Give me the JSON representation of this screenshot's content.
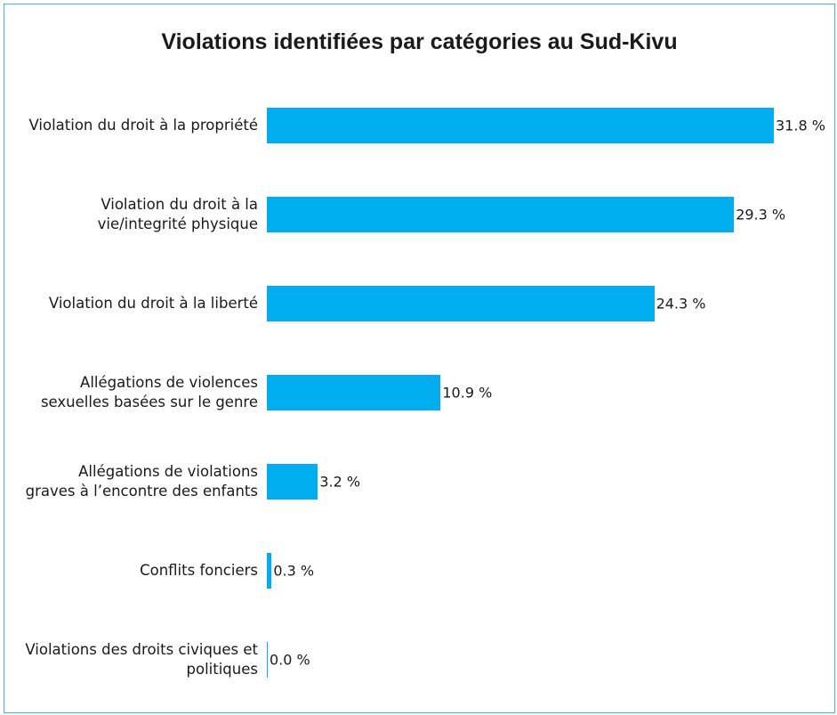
{
  "chart_data": {
    "type": "barh",
    "title": "Violations identifiées par catégories au Sud-Kivu",
    "categories": [
      "Violation du droit à la propriété",
      "Violation du droit à la vie/integrité physique",
      "Violation du droit à la liberté",
      "Allégations de violences sexuelles basées sur le genre",
      "Allégations de violations graves à l’encontre des enfants",
      "Conflits fonciers",
      "Violations des droits civiques et politiques"
    ],
    "values": [
      31.8,
      29.3,
      24.3,
      10.9,
      3.2,
      0.3,
      0.0
    ],
    "value_labels": [
      "31.8 %",
      "29.3 %",
      "24.3 %",
      "10.9 %",
      "3.2 %",
      "0.3 %",
      "0.0 %"
    ],
    "color": "#00aeef"
  }
}
